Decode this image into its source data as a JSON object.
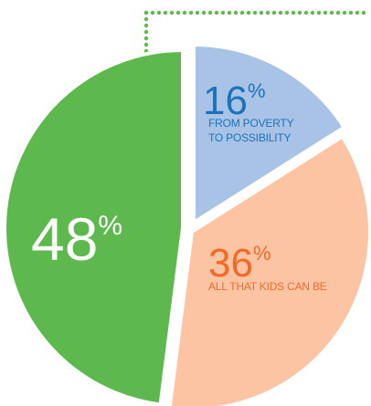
{
  "chart_data": {
    "type": "pie",
    "slices": [
      {
        "value": 16,
        "percent_text": "16",
        "percent_symbol": "%",
        "label_lines": [
          "FROM POVERTY",
          "TO POSSIBILITY"
        ],
        "color": "#a9c3e6",
        "text_color": "#1a73bb"
      },
      {
        "value": 36,
        "percent_text": "36",
        "percent_symbol": "%",
        "label_lines": [
          "ALL THAT KIDS CAN BE"
        ],
        "color": "#fcc4a3",
        "text_color": "#f26a27"
      },
      {
        "value": 48,
        "percent_text": "48",
        "percent_symbol": "%",
        "label_lines": [],
        "color": "#5db94d",
        "text_color": "#ffffff"
      }
    ],
    "legend": "none"
  },
  "colors": {
    "dotted_connector": "#5db94d",
    "slice_gap": "#ffffff"
  }
}
